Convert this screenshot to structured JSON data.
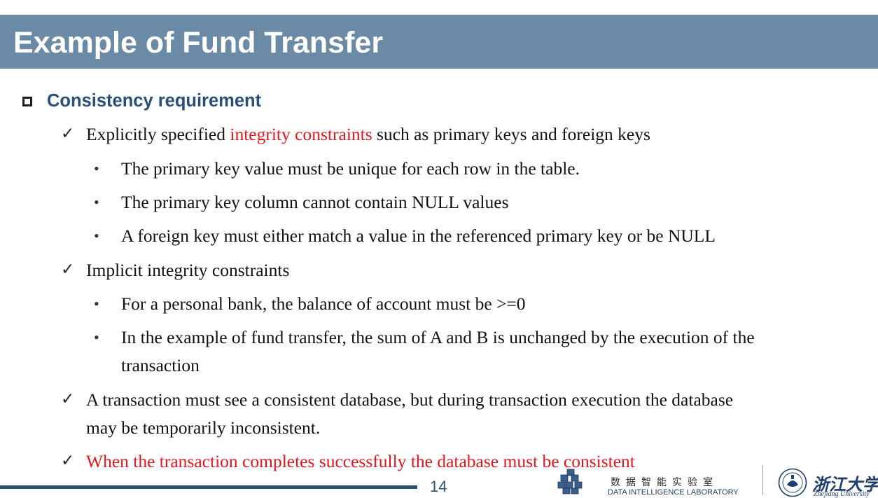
{
  "slide": {
    "title": "Example of Fund Transfer",
    "heading": "Consistency requirement",
    "items": [
      {
        "parts": [
          "Explicitly specified ",
          "integrity constraints",
          " such as primary keys and foreign keys"
        ]
      },
      {
        "text": "The primary key value must be unique for each row in the table."
      },
      {
        "text": "The primary key column cannot contain NULL values"
      },
      {
        "text": "A foreign key must either match a value in the referenced primary key or be NULL"
      },
      {
        "text": "Implicit integrity constraints"
      },
      {
        "text": "For a personal bank, the balance of account must be >=0"
      },
      {
        "lines": [
          "In the example of fund transfer, the sum of A and B is unchanged by the execution of the",
          "transaction"
        ]
      },
      {
        "lines": [
          "A transaction must see a consistent database, but during transaction execution the database",
          "may be temporarily inconsistent."
        ]
      },
      {
        "text": "When the transaction completes successfully the database must be consistent"
      }
    ],
    "page_number": "14"
  },
  "footer": {
    "lab_cn": "数据智能实验室",
    "lab_en": "DATA INTELLIGENCE LABORATORY",
    "university_cn": "浙江大学",
    "university_en": "Zhejiang University"
  },
  "colors": {
    "title_bar": "#6b8aa6",
    "heading": "#2c4f78",
    "highlight_red": "#e8141c",
    "footer_line": "#2e5077"
  },
  "icons": {
    "heading_bullet": "hollow-square",
    "level1_bullet": "check-mark",
    "level2_bullet": "round-dot"
  }
}
